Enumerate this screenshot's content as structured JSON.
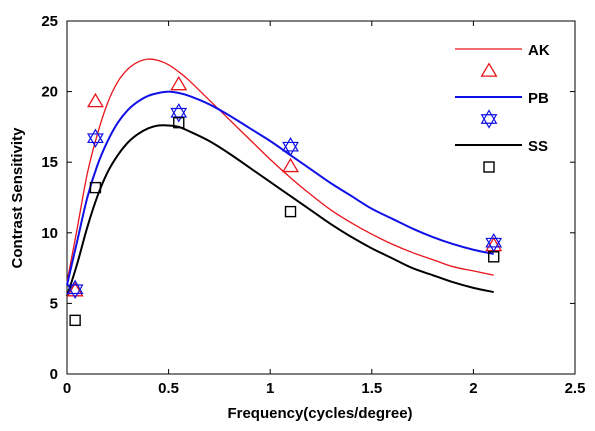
{
  "chart_data": {
    "type": "line",
    "xlabel": "Frequency(cycles/degree)",
    "ylabel": "Contrast Sensitivity",
    "xlim": [
      0,
      2.5
    ],
    "ylim": [
      0,
      25
    ],
    "xticks": [
      "0",
      "0.5",
      "1",
      "1.5",
      "2",
      "2.5"
    ],
    "xtick_values": [
      0,
      0.5,
      1,
      1.5,
      2,
      2.5
    ],
    "yticks": [
      "0",
      "5",
      "10",
      "15",
      "20",
      "25"
    ],
    "ytick_values": [
      0,
      5,
      10,
      15,
      20,
      25
    ],
    "grid": false,
    "legend_position": "top-right",
    "series": [
      {
        "name": "AK",
        "color": "#e8141b",
        "marker": "triangle",
        "points": {
          "x": [
            0.04,
            0.14,
            0.55,
            1.1,
            2.1
          ],
          "y": [
            5.9,
            19.3,
            20.5,
            14.7,
            9.1
          ]
        },
        "fit": {
          "x": [
            0,
            0.05,
            0.1,
            0.15,
            0.2,
            0.25,
            0.3,
            0.35,
            0.4,
            0.45,
            0.5,
            0.55,
            0.6,
            0.7,
            0.8,
            0.9,
            1.0,
            1.1,
            1.2,
            1.3,
            1.4,
            1.5,
            1.6,
            1.7,
            1.8,
            1.9,
            2.0,
            2.1
          ],
          "y": [
            6.5,
            10.3,
            14.2,
            17.0,
            19.2,
            20.7,
            21.6,
            22.1,
            22.3,
            22.2,
            21.9,
            21.4,
            20.8,
            19.4,
            18.0,
            16.6,
            15.2,
            13.9,
            12.7,
            11.6,
            10.7,
            9.9,
            9.2,
            8.6,
            8.1,
            7.6,
            7.3,
            7.0
          ]
        }
      },
      {
        "name": "PB",
        "color": "#1010e8",
        "marker": "star",
        "points": {
          "x": [
            0.04,
            0.14,
            0.55,
            1.1,
            2.1
          ],
          "y": [
            6.0,
            16.7,
            18.5,
            16.1,
            9.3
          ]
        },
        "fit": {
          "x": [
            0,
            0.05,
            0.1,
            0.15,
            0.2,
            0.25,
            0.3,
            0.35,
            0.4,
            0.45,
            0.5,
            0.55,
            0.6,
            0.7,
            0.8,
            0.9,
            1.0,
            1.1,
            1.2,
            1.3,
            1.4,
            1.5,
            1.6,
            1.7,
            1.8,
            1.9,
            2.0,
            2.1
          ],
          "y": [
            6.3,
            9.4,
            12.5,
            14.8,
            16.5,
            17.8,
            18.7,
            19.3,
            19.7,
            19.9,
            20.0,
            19.9,
            19.7,
            19.1,
            18.3,
            17.4,
            16.5,
            15.5,
            14.5,
            13.5,
            12.6,
            11.7,
            11.0,
            10.3,
            9.7,
            9.2,
            8.8,
            8.5
          ]
        }
      },
      {
        "name": "SS",
        "color": "#000000",
        "marker": "square",
        "points": {
          "x": [
            0.04,
            0.14,
            0.55,
            1.1,
            2.1
          ],
          "y": [
            3.8,
            13.2,
            17.8,
            11.5,
            8.3
          ]
        },
        "fit": {
          "x": [
            0,
            0.05,
            0.1,
            0.15,
            0.2,
            0.25,
            0.3,
            0.35,
            0.4,
            0.45,
            0.5,
            0.55,
            0.6,
            0.7,
            0.8,
            0.9,
            1.0,
            1.1,
            1.2,
            1.3,
            1.4,
            1.5,
            1.6,
            1.7,
            1.8,
            1.9,
            2.0,
            2.1
          ],
          "y": [
            5.5,
            7.8,
            10.4,
            12.6,
            14.3,
            15.5,
            16.4,
            17.0,
            17.4,
            17.6,
            17.6,
            17.5,
            17.2,
            16.5,
            15.6,
            14.6,
            13.6,
            12.6,
            11.6,
            10.6,
            9.7,
            8.9,
            8.2,
            7.5,
            7.0,
            6.5,
            6.1,
            5.8
          ]
        }
      }
    ]
  }
}
